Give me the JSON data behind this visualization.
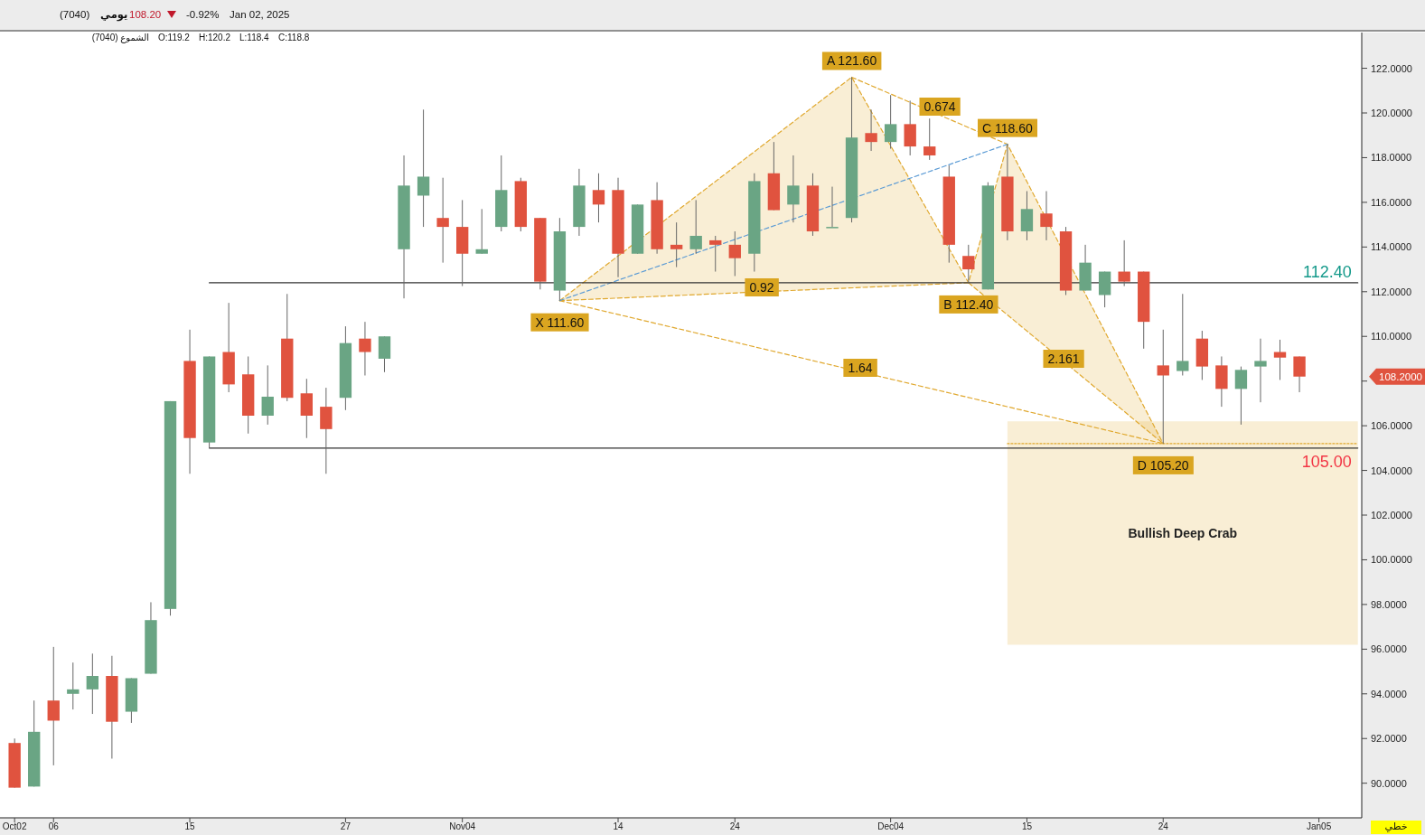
{
  "chart_data": {
    "type": "candlestick",
    "title": "(7040)",
    "subtitle": "يومي",
    "categories": [
      "Oct02",
      null,
      "06",
      null,
      null,
      null,
      null,
      null,
      null,
      "15",
      null,
      null,
      null,
      null,
      null,
      null,
      null,
      "27",
      null,
      null,
      null,
      null,
      null,
      "Nov04",
      null,
      null,
      null,
      null,
      null,
      null,
      null,
      "14",
      null,
      null,
      null,
      null,
      null,
      "24",
      null,
      null,
      null,
      null,
      null,
      null,
      null,
      "Dec04",
      null,
      null,
      null,
      null,
      null,
      null,
      "15",
      null,
      null,
      null,
      null,
      null,
      null,
      "24",
      null,
      null,
      null,
      null,
      null,
      null,
      null,
      "Jan05",
      null,
      null
    ],
    "ohlc": [
      [
        91.8,
        92.0,
        89.8,
        89.8
      ],
      [
        89.85,
        93.7,
        89.85,
        92.3
      ],
      [
        93.7,
        96.1,
        90.8,
        92.8
      ],
      [
        94.0,
        95.4,
        93.3,
        94.2
      ],
      [
        94.2,
        95.8,
        93.1,
        94.8
      ],
      [
        94.8,
        95.7,
        91.1,
        92.75
      ],
      [
        93.2,
        94.7,
        92.7,
        94.7
      ],
      [
        94.9,
        98.1,
        94.9,
        97.3
      ],
      [
        97.8,
        107.1,
        97.5,
        107.1
      ],
      [
        108.9,
        110.3,
        103.85,
        105.45
      ],
      [
        105.25,
        109.1,
        105.0,
        109.1
      ],
      [
        109.3,
        111.5,
        107.5,
        107.85
      ],
      [
        108.3,
        109.1,
        105.65,
        106.45
      ],
      [
        106.45,
        108.7,
        106.05,
        107.3
      ],
      [
        109.9,
        111.9,
        107.1,
        107.25
      ],
      [
        107.45,
        108.1,
        105.45,
        106.45
      ],
      [
        106.85,
        107.7,
        103.85,
        105.85
      ],
      [
        107.25,
        110.45,
        106.7,
        109.7
      ],
      [
        109.9,
        110.65,
        108.25,
        109.3
      ],
      [
        109.0,
        110.0,
        108.4,
        110.0
      ],
      [
        113.9,
        118.1,
        111.7,
        116.75
      ],
      [
        116.3,
        120.15,
        114.9,
        117.15
      ],
      [
        115.3,
        117.1,
        113.3,
        114.9
      ],
      [
        114.9,
        116.1,
        112.25,
        113.7
      ],
      [
        113.7,
        115.7,
        113.7,
        113.9
      ],
      [
        114.9,
        118.1,
        114.7,
        116.55
      ],
      [
        116.95,
        117.1,
        114.7,
        114.9
      ],
      [
        115.3,
        115.3,
        112.1,
        112.45
      ],
      [
        112.05,
        115.3,
        111.6,
        114.7
      ],
      [
        114.9,
        117.5,
        114.5,
        116.75
      ],
      [
        116.55,
        117.3,
        115.1,
        115.9
      ],
      [
        116.55,
        117.1,
        112.65,
        113.7
      ],
      [
        113.7,
        115.9,
        113.7,
        115.9
      ],
      [
        116.1,
        116.9,
        113.7,
        113.9
      ],
      [
        114.1,
        115.1,
        113.1,
        113.9
      ],
      [
        113.9,
        116.1,
        113.7,
        114.5
      ],
      [
        114.3,
        114.5,
        112.9,
        114.1
      ],
      [
        114.1,
        114.7,
        112.7,
        113.5
      ],
      [
        113.7,
        117.3,
        112.9,
        116.95
      ],
      [
        117.3,
        118.7,
        115.65,
        115.65
      ],
      [
        115.9,
        118.1,
        115.1,
        116.75
      ],
      [
        116.75,
        117.3,
        114.5,
        114.7
      ],
      [
        114.9,
        116.7,
        114.9,
        114.9
      ],
      [
        115.3,
        121.6,
        115.1,
        118.9
      ],
      [
        119.1,
        120.15,
        118.3,
        118.7
      ],
      [
        118.7,
        120.8,
        118.4,
        119.5
      ],
      [
        119.5,
        120.55,
        118.1,
        118.5
      ],
      [
        118.5,
        119.75,
        117.9,
        118.1
      ],
      [
        117.15,
        117.65,
        113.3,
        114.1
      ],
      [
        113.6,
        114.1,
        112.4,
        113.0
      ],
      [
        112.1,
        116.9,
        112.1,
        116.75
      ],
      [
        117.15,
        118.6,
        114.3,
        114.7
      ],
      [
        114.7,
        116.5,
        114.3,
        115.7
      ],
      [
        115.5,
        116.5,
        114.3,
        114.9
      ],
      [
        114.7,
        114.9,
        111.85,
        112.05
      ],
      [
        112.05,
        114.1,
        112.05,
        113.3
      ],
      [
        111.85,
        112.9,
        111.3,
        112.9
      ],
      [
        112.9,
        114.3,
        112.25,
        112.45
      ],
      [
        112.9,
        112.9,
        109.45,
        110.65
      ],
      [
        108.7,
        110.3,
        105.2,
        108.25
      ],
      [
        108.45,
        111.9,
        108.25,
        108.9
      ],
      [
        109.9,
        110.25,
        108.05,
        108.65
      ],
      [
        108.7,
        109.1,
        106.85,
        107.65
      ],
      [
        107.65,
        108.65,
        106.05,
        108.5
      ],
      [
        108.65,
        109.9,
        107.05,
        108.9
      ],
      [
        109.3,
        109.85,
        108.05,
        109.05
      ],
      [
        109.1,
        109.1,
        107.5,
        108.2
      ],
      null,
      null,
      null
    ],
    "colors": [
      "#e0533f",
      "#6aa584",
      "#e0533f",
      "#6aa584",
      "#6aa584",
      "#e0533f",
      "#6aa584",
      "#6aa584",
      "#6aa584",
      "#e0533f",
      "#6aa584",
      "#e0533f",
      "#e0533f",
      "#6aa584",
      "#e0533f",
      "#e0533f",
      "#e0533f",
      "#6aa584",
      "#e0533f",
      "#6aa584",
      "#6aa584",
      "#6aa584",
      "#e0533f",
      "#e0533f",
      "#6aa584",
      "#6aa584",
      "#e0533f",
      "#e0533f",
      "#6aa584",
      "#6aa584",
      "#e0533f",
      "#e0533f",
      "#6aa584",
      "#e0533f",
      "#e0533f",
      "#6aa584",
      "#e0533f",
      "#e0533f",
      "#6aa584",
      "#e0533f",
      "#6aa584",
      "#e0533f",
      "#6aa584",
      "#6aa584",
      "#e0533f",
      "#6aa584",
      "#e0533f",
      "#e0533f",
      "#e0533f",
      "#e0533f",
      "#6aa584",
      "#e0533f",
      "#6aa584",
      "#e0533f",
      "#e0533f",
      "#6aa584",
      "#6aa584",
      "#e0533f",
      "#e0533f",
      "#e0533f",
      "#6aa584",
      "#e0533f",
      "#e0533f",
      "#6aa584",
      "#6aa584",
      "#e0533f",
      "#e0533f",
      null,
      null,
      null
    ],
    "series": [
      {
        "type": "line",
        "name": "Bullish Deep Crab",
        "color": "#e0a82e",
        "line_style": "dotted",
        "values": [
          null,
          null,
          null,
          null,
          null,
          null,
          null,
          null,
          null,
          null,
          null,
          null,
          null,
          null,
          null,
          null,
          null,
          null,
          null,
          null,
          null,
          null,
          null,
          null,
          null,
          null,
          null,
          null,
          null,
          null,
          null,
          null,
          null,
          null,
          null,
          null,
          null,
          null,
          null,
          null,
          null,
          null,
          null,
          null,
          null,
          null,
          null,
          null,
          null,
          null,
          null,
          105.2,
          null,
          null,
          null,
          null,
          null,
          null,
          null,
          null,
          null,
          null,
          null,
          null,
          null,
          null,
          null,
          null,
          null,
          105.2
        ],
        "lower": [
          null,
          null,
          null,
          null,
          null,
          null,
          null,
          null,
          null,
          null,
          null,
          null,
          null,
          null,
          null,
          null,
          null,
          null,
          null,
          null,
          null,
          null,
          null,
          null,
          null,
          null,
          null,
          null,
          null,
          null,
          null,
          null,
          null,
          null,
          null,
          null,
          null,
          null,
          null,
          null,
          null,
          null,
          null,
          null,
          null,
          null,
          null,
          null,
          null,
          null,
          null,
          96.2,
          null,
          null,
          null,
          null,
          null,
          null,
          null,
          null,
          null,
          null,
          null,
          null,
          null,
          null,
          null,
          null,
          null,
          96.2
        ],
        "upper": [
          null,
          null,
          null,
          null,
          null,
          null,
          null,
          null,
          null,
          null,
          null,
          null,
          null,
          null,
          null,
          null,
          null,
          null,
          null,
          null,
          null,
          null,
          null,
          null,
          null,
          null,
          null,
          null,
          null,
          null,
          null,
          null,
          null,
          null,
          null,
          null,
          null,
          null,
          null,
          null,
          null,
          null,
          null,
          null,
          null,
          null,
          null,
          null,
          null,
          null,
          null,
          106.2,
          null,
          null,
          null,
          null,
          null,
          null,
          null,
          null,
          null,
          null,
          null,
          null,
          null,
          null,
          null,
          null,
          null,
          106.2
        ]
      },
      {
        "type": "line",
        "color": "#e0a82e",
        "line_style": "dashed",
        "values": [
          null,
          null,
          null,
          null,
          null,
          null,
          null,
          null,
          null,
          null,
          null,
          null,
          null,
          null,
          null,
          null,
          null,
          null,
          null,
          null,
          null,
          null,
          null,
          null,
          null,
          null,
          null,
          null,
          111.6,
          null,
          null,
          null,
          null,
          null,
          null,
          null,
          null,
          null,
          null,
          null,
          null,
          null,
          null,
          121.6,
          null,
          null,
          null,
          null,
          null,
          112.4,
          null,
          118.6,
          null,
          null,
          null,
          null,
          null,
          null,
          null,
          105.2,
          null,
          null,
          null,
          null,
          null,
          null,
          null,
          null,
          null,
          null
        ],
        "lower": [
          null,
          null,
          null,
          null,
          null,
          null,
          null,
          null,
          null,
          null,
          null,
          null,
          null,
          null,
          null,
          null,
          null,
          null,
          null,
          null,
          null,
          null,
          null,
          null,
          null,
          null,
          null,
          null,
          111.6,
          null,
          null,
          null,
          null,
          null,
          null,
          null,
          null,
          null,
          null,
          null,
          null,
          null,
          null,
          112.17,
          null,
          null,
          null,
          null,
          null,
          112.4,
          null,
          110.96,
          null,
          null,
          null,
          null,
          null,
          null,
          null,
          105.2,
          null,
          null,
          null,
          null,
          null,
          null,
          null,
          null,
          null,
          null
        ],
        "upper": [
          null,
          null,
          null,
          null,
          null,
          null,
          null,
          null,
          null,
          null,
          null,
          null,
          null,
          null,
          null,
          null,
          null,
          null,
          null,
          null,
          null,
          null,
          null,
          null,
          null,
          null,
          null,
          null,
          111.6,
          null,
          null,
          null,
          null,
          null,
          null,
          null,
          null,
          null,
          null,
          null,
          null,
          null,
          null,
          121.6,
          null,
          null,
          null,
          null,
          null,
          112.4,
          null,
          118.6,
          null,
          null,
          null,
          null,
          null,
          null,
          null,
          105.2,
          null,
          null,
          null,
          null,
          null,
          null,
          null,
          null,
          null,
          null
        ],
        "value_labels": [
          null,
          null,
          null,
          null,
          null,
          null,
          null,
          null,
          null,
          null,
          null,
          null,
          null,
          null,
          null,
          null,
          null,
          null,
          null,
          null,
          null,
          null,
          null,
          null,
          null,
          null,
          null,
          null,
          "X 111.60",
          null,
          null,
          null,
          null,
          null,
          null,
          null,
          null,
          null,
          null,
          null,
          null,
          null,
          null,
          "A 121.60",
          null,
          null,
          null,
          null,
          null,
          "B 112.40",
          null,
          "C 118.60",
          null,
          null,
          null,
          null,
          null,
          null,
          null,
          "D 105.20",
          null,
          null,
          null,
          null,
          null,
          null,
          null,
          null,
          null,
          null
        ]
      },
      {
        "type": "line",
        "color": "#e0a82e",
        "line_style": "dashed",
        "values": [
          null,
          null,
          null,
          null,
          null,
          null,
          null,
          null,
          null,
          null,
          null,
          null,
          null,
          null,
          null,
          null,
          null,
          null,
          null,
          null,
          null,
          null,
          null,
          null,
          null,
          null,
          null,
          null,
          111.6,
          null,
          null,
          null,
          null,
          null,
          null,
          null,
          null,
          null,
          null,
          null,
          null,
          null,
          null,
          null,
          null,
          null,
          null,
          null,
          null,
          112.4,
          null,
          null,
          null,
          null,
          null,
          null,
          null,
          null,
          null,
          null,
          null,
          null,
          null,
          null,
          null,
          null,
          null,
          null,
          null,
          null
        ]
      },
      {
        "type": "line",
        "color": "#e0a82e",
        "line_style": "dashed",
        "values": [
          null,
          null,
          null,
          null,
          null,
          null,
          null,
          null,
          null,
          null,
          null,
          null,
          null,
          null,
          null,
          null,
          null,
          null,
          null,
          null,
          null,
          null,
          null,
          null,
          null,
          null,
          null,
          null,
          null,
          null,
          null,
          null,
          null,
          null,
          null,
          null,
          null,
          null,
          null,
          null,
          null,
          null,
          null,
          121.6,
          null,
          null,
          null,
          null,
          null,
          null,
          null,
          118.6,
          null,
          null,
          null,
          null,
          null,
          null,
          null,
          null,
          null,
          null,
          null,
          null,
          null,
          null,
          null,
          null,
          null,
          null
        ]
      },
      {
        "type": "line",
        "color": "#e0a82e",
        "line_style": "dashed",
        "values": [
          null,
          null,
          null,
          null,
          null,
          null,
          null,
          null,
          null,
          null,
          null,
          null,
          null,
          null,
          null,
          null,
          null,
          null,
          null,
          null,
          null,
          null,
          null,
          null,
          null,
          null,
          null,
          null,
          null,
          null,
          null,
          null,
          null,
          null,
          null,
          null,
          null,
          null,
          null,
          null,
          null,
          null,
          null,
          null,
          null,
          null,
          null,
          null,
          null,
          112.4,
          null,
          null,
          null,
          null,
          null,
          null,
          null,
          null,
          null,
          105.2,
          null,
          null,
          null,
          null,
          null,
          null,
          null,
          null,
          null,
          null
        ]
      },
      {
        "type": "line",
        "color": "#e0a82e",
        "line_style": "dashed",
        "values": [
          null,
          null,
          null,
          null,
          null,
          null,
          null,
          null,
          null,
          null,
          null,
          null,
          null,
          null,
          null,
          null,
          null,
          null,
          null,
          null,
          null,
          null,
          null,
          null,
          null,
          null,
          null,
          null,
          111.6,
          null,
          null,
          null,
          null,
          null,
          null,
          null,
          null,
          null,
          null,
          null,
          null,
          null,
          null,
          null,
          null,
          null,
          null,
          null,
          null,
          null,
          null,
          null,
          null,
          null,
          null,
          null,
          null,
          null,
          null,
          105.2,
          null,
          null,
          null,
          null,
          null,
          null,
          null,
          null,
          null,
          null
        ]
      },
      {
        "type": "line",
        "color": "#5b9bd5",
        "line_style": "dashed",
        "values": [
          null,
          null,
          null,
          null,
          null,
          null,
          null,
          null,
          null,
          null,
          null,
          null,
          null,
          null,
          null,
          null,
          null,
          null,
          null,
          null,
          null,
          null,
          null,
          null,
          null,
          null,
          null,
          null,
          111.6,
          null,
          null,
          null,
          null,
          null,
          null,
          null,
          null,
          null,
          null,
          null,
          null,
          null,
          null,
          null,
          null,
          null,
          null,
          null,
          null,
          null,
          null,
          118.6,
          null,
          null,
          null,
          null,
          null,
          null,
          null,
          null,
          null,
          null,
          null,
          null,
          null,
          null,
          null,
          null,
          null,
          null
        ]
      },
      {
        "type": "line",
        "color": "#333333",
        "line_style": "solid",
        "values": [
          null,
          null,
          null,
          null,
          null,
          null,
          null,
          null,
          null,
          null,
          112.4,
          null,
          null,
          null,
          null,
          null,
          null,
          null,
          null,
          null,
          null,
          null,
          null,
          null,
          null,
          null,
          null,
          null,
          null,
          null,
          null,
          null,
          null,
          null,
          null,
          null,
          null,
          null,
          null,
          null,
          null,
          null,
          null,
          null,
          null,
          null,
          null,
          null,
          null,
          null,
          null,
          null,
          null,
          null,
          null,
          null,
          null,
          null,
          null,
          null,
          null,
          null,
          null,
          null,
          null,
          null,
          null,
          null,
          null,
          112.4
        ],
        "value_labels": [
          null,
          null,
          null,
          null,
          null,
          null,
          null,
          null,
          null,
          null,
          null,
          null,
          null,
          null,
          null,
          null,
          null,
          null,
          null,
          null,
          null,
          null,
          null,
          null,
          null,
          null,
          null,
          null,
          null,
          null,
          null,
          null,
          null,
          null,
          null,
          null,
          null,
          null,
          null,
          null,
          null,
          null,
          null,
          null,
          null,
          null,
          null,
          null,
          null,
          null,
          null,
          null,
          null,
          null,
          null,
          null,
          null,
          null,
          null,
          null,
          null,
          null,
          null,
          null,
          null,
          null,
          null,
          null,
          null,
          "112.40"
        ],
        "colors": [
          null,
          null,
          null,
          null,
          null,
          null,
          null,
          null,
          null,
          null,
          null,
          null,
          null,
          null,
          null,
          null,
          null,
          null,
          null,
          null,
          null,
          null,
          null,
          null,
          null,
          null,
          null,
          null,
          null,
          null,
          null,
          null,
          null,
          null,
          null,
          null,
          null,
          null,
          null,
          null,
          null,
          null,
          null,
          null,
          null,
          null,
          null,
          null,
          null,
          null,
          null,
          null,
          null,
          null,
          null,
          null,
          null,
          null,
          null,
          null,
          null,
          null,
          null,
          null,
          null,
          null,
          null,
          null,
          null,
          "#14998a"
        ]
      },
      {
        "type": "line",
        "color": "#333333",
        "line_style": "solid",
        "values": [
          null,
          null,
          null,
          null,
          null,
          null,
          null,
          null,
          null,
          null,
          105.0,
          null,
          null,
          null,
          null,
          null,
          null,
          null,
          null,
          null,
          null,
          null,
          null,
          null,
          null,
          null,
          null,
          null,
          null,
          null,
          null,
          null,
          null,
          null,
          null,
          null,
          null,
          null,
          null,
          null,
          null,
          null,
          null,
          null,
          null,
          null,
          null,
          null,
          null,
          null,
          null,
          null,
          null,
          null,
          null,
          null,
          null,
          null,
          null,
          null,
          null,
          null,
          null,
          null,
          null,
          null,
          null,
          null,
          null,
          105.0
        ],
        "value_labels": [
          null,
          null,
          null,
          null,
          null,
          null,
          null,
          null,
          null,
          null,
          null,
          null,
          null,
          null,
          null,
          null,
          null,
          null,
          null,
          null,
          null,
          null,
          null,
          null,
          null,
          null,
          null,
          null,
          null,
          null,
          null,
          null,
          null,
          null,
          null,
          null,
          null,
          null,
          null,
          null,
          null,
          null,
          null,
          null,
          null,
          null,
          null,
          null,
          null,
          null,
          null,
          null,
          null,
          null,
          null,
          null,
          null,
          null,
          null,
          null,
          null,
          null,
          null,
          null,
          null,
          null,
          null,
          null,
          null,
          "105.00"
        ],
        "colors": [
          null,
          null,
          null,
          null,
          null,
          null,
          null,
          null,
          null,
          null,
          null,
          null,
          null,
          null,
          null,
          null,
          null,
          null,
          null,
          null,
          null,
          null,
          null,
          null,
          null,
          null,
          null,
          null,
          null,
          null,
          null,
          null,
          null,
          null,
          null,
          null,
          null,
          null,
          null,
          null,
          null,
          null,
          null,
          null,
          null,
          null,
          null,
          null,
          null,
          null,
          null,
          null,
          null,
          null,
          null,
          null,
          null,
          null,
          null,
          null,
          null,
          null,
          null,
          null,
          null,
          null,
          null,
          null,
          null,
          "#f23645"
        ]
      }
    ],
    "ylim": [
      88.45,
      123.6
    ],
    "yticks": [
      {
        "value": 90,
        "label": "90.0000"
      },
      {
        "value": 92,
        "label": "92.0000"
      },
      {
        "value": 94,
        "label": "94.0000"
      },
      {
        "value": 96,
        "label": "96.0000"
      },
      {
        "value": 98,
        "label": "98.0000"
      },
      {
        "value": 100,
        "label": "100.0000"
      },
      {
        "value": 102,
        "label": "102.0000"
      },
      {
        "value": 104,
        "label": "104.0000"
      },
      {
        "value": 106,
        "label": "106.0000"
      },
      {
        "value": 108,
        "label": null
      },
      {
        "value": 110,
        "label": "110.0000"
      },
      {
        "value": 112,
        "label": "112.0000"
      },
      {
        "value": 114,
        "label": "114.0000"
      },
      {
        "value": 116,
        "label": "116.0000"
      },
      {
        "value": 118,
        "label": "118.0000"
      },
      {
        "value": 120,
        "label": "120.0000"
      },
      {
        "value": 122,
        "label": "122.0000"
      }
    ],
    "grid": false,
    "annotations": [
      "108.20",
      "-0.92%",
      "Jan 02, 2025",
      "الشموع (7040)",
      "O:119.2",
      "H:120.2",
      "L:118.4",
      "C:118.8",
      "خطي",
      "0.92",
      "0.674",
      "2.161",
      "1.64",
      "108.2000"
    ]
  }
}
